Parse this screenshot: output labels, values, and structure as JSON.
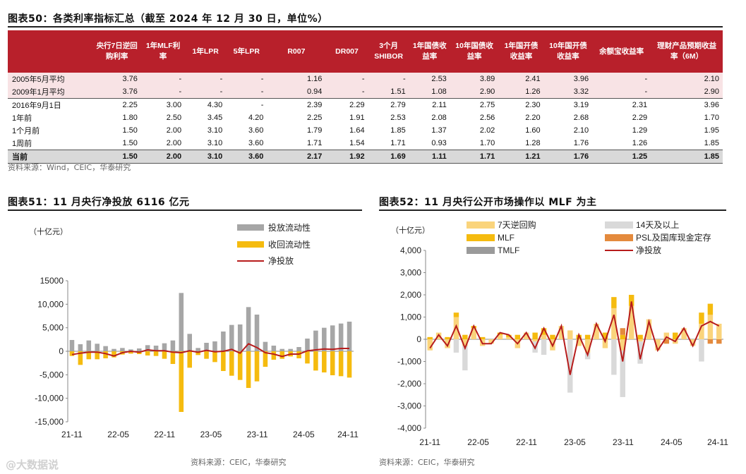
{
  "table_fig": {
    "title": "图表50：各类利率指标汇总（截至 2024 年 12 月 30 日，单位%）",
    "source": "资料来源：Wind，CEIC，华泰研究",
    "columns": [
      "",
      "央行7日逆回购利率",
      "1年MLF利率",
      "1年LPR",
      "5年LPR",
      "R007",
      "DR007",
      "3个月SHIBOR",
      "1年国债收益率",
      "10年国债收益率",
      "1年国开债收益率",
      "10年国开债收益率",
      "余额宝收益率",
      "理财产品预期收益率（6M）"
    ],
    "rows": [
      {
        "label": "2005年5月平均",
        "vals": [
          "3.76",
          "-",
          "-",
          "-",
          "1.16",
          "-",
          "-",
          "2.53",
          "3.89",
          "2.41",
          "3.96",
          "-",
          "2.10"
        ]
      },
      {
        "label": "2009年1月平均",
        "vals": [
          "3.76",
          "-",
          "-",
          "-",
          "0.94",
          "-",
          "1.51",
          "1.08",
          "2.90",
          "1.26",
          "3.32",
          "-",
          "2.90"
        ]
      },
      {
        "label": "2016年9月1日",
        "vals": [
          "2.25",
          "3.00",
          "4.30",
          "-",
          "2.39",
          "2.29",
          "2.79",
          "2.11",
          "2.75",
          "2.30",
          "3.19",
          "2.31",
          "3.96"
        ]
      },
      {
        "label": "1年前",
        "vals": [
          "1.80",
          "2.50",
          "3.45",
          "4.20",
          "2.25",
          "1.91",
          "2.53",
          "2.08",
          "2.56",
          "2.20",
          "2.68",
          "2.29",
          "1.70"
        ]
      },
      {
        "label": "1个月前",
        "vals": [
          "1.50",
          "2.00",
          "3.10",
          "3.60",
          "1.79",
          "1.64",
          "1.85",
          "1.37",
          "2.02",
          "1.60",
          "2.10",
          "1.29",
          "1.95"
        ]
      },
      {
        "label": "1周前",
        "vals": [
          "1.50",
          "2.00",
          "3.10",
          "3.60",
          "1.71",
          "1.54",
          "1.71",
          "0.93",
          "1.70",
          "1.28",
          "1.76",
          "1.26",
          "1.85"
        ]
      },
      {
        "label": "当前",
        "vals": [
          "1.50",
          "2.00",
          "3.10",
          "3.60",
          "2.17",
          "1.92",
          "1.69",
          "1.11",
          "1.71",
          "1.21",
          "1.76",
          "1.25",
          "1.85"
        ]
      }
    ]
  },
  "chart_data": [
    {
      "type": "bar",
      "title": "图表51：11 月央行净投放 6116 亿元",
      "unit_label": "（十亿元）",
      "source": "资料来源：CEIC，华泰研究",
      "ylim": [
        -15000,
        15000
      ],
      "yticks": [
        "15000",
        "10,000",
        "5,000",
        "0",
        "-5,000",
        "-10,000",
        "-15,000"
      ],
      "ytick_values": [
        15000,
        10000,
        5000,
        0,
        -5000,
        -10000,
        -15000
      ],
      "xtick_labels": [
        "21-11",
        "22-05",
        "22-11",
        "23-05",
        "23-11",
        "24-05",
        "24-11"
      ],
      "legend": [
        "投放流动性",
        "收回流动性",
        "净投放"
      ],
      "colors": {
        "inject": "#a6a6a6",
        "withdraw": "#f5bb0f",
        "net": "#b71c1c"
      },
      "series": [
        {
          "name": "投放流动性",
          "values": [
            2400,
            1500,
            2300,
            1600,
            1100,
            500,
            700,
            400,
            600,
            1300,
            1200,
            1700,
            2300,
            12400,
            3700,
            700,
            1800,
            2100,
            4200,
            5600,
            5700,
            9400,
            7800,
            2000,
            1200,
            500,
            500,
            900,
            2700,
            4400,
            5000,
            5500,
            5900,
            6300
          ]
        },
        {
          "name": "收回流动性",
          "values": [
            -1000,
            -2900,
            -1700,
            -1700,
            -1500,
            -1300,
            -700,
            -500,
            -600,
            -900,
            -1000,
            -1600,
            -2700,
            -12900,
            -3500,
            -800,
            -1600,
            -2300,
            -4200,
            -5200,
            -6100,
            -7800,
            -6400,
            -3300,
            -1800,
            -1600,
            -1100,
            -1500,
            -2600,
            -4100,
            -4500,
            -5100,
            -5300,
            -5600
          ]
        },
        {
          "name": "净投放",
          "values": [
            -700,
            -400,
            -200,
            -200,
            -500,
            -1000,
            -300,
            0,
            -200,
            300,
            100,
            100,
            -200,
            -300,
            100,
            -200,
            200,
            -100,
            0,
            400,
            -400,
            1600,
            800,
            -300,
            -600,
            -1100,
            -600,
            -600,
            100,
            300,
            500,
            400,
            600,
            600
          ]
        }
      ]
    },
    {
      "type": "bar",
      "title": "图表52：11 月央行公开市场操作以 MLF 为主",
      "unit_label": "（十亿元）",
      "source": "资料来源：CEIC，华泰研究",
      "ylim": [
        -4000,
        4000
      ],
      "yticks": [
        "4,000",
        "3,000",
        "2,000",
        "1,000",
        "0",
        "-1,000",
        "-2,000",
        "-3,000",
        "-4,000"
      ],
      "ytick_values": [
        4000,
        3000,
        2000,
        1000,
        0,
        -1000,
        -2000,
        -3000,
        -4000
      ],
      "xtick_labels": [
        "21-11",
        "22-05",
        "22-11",
        "23-05",
        "23-11",
        "24-05",
        "24-11"
      ],
      "legend": [
        "7天逆回购",
        "14天及以上",
        "MLF",
        "PSL及国库现金定存",
        "TMLF",
        "净投放"
      ],
      "colors": {
        "rr7": "#fad47c",
        "rr14": "#d9d9d9",
        "mlf": "#f5bb0f",
        "psl": "#e48a3d",
        "tmlf": "#9a9a9a",
        "net": "#b71c1c"
      },
      "series": [
        {
          "name": "7天逆回购",
          "values": [
            -500,
            300,
            -400,
            1000,
            -300,
            500,
            -300,
            -200,
            200,
            100,
            -400,
            300,
            -100,
            200,
            -500,
            600,
            400,
            -300,
            -600,
            700,
            -400,
            1400,
            -500,
            1500,
            -100,
            900,
            -500,
            300,
            -200,
            500,
            -300,
            700,
            1100,
            700
          ]
        },
        {
          "name": "14天及以上",
          "values": [
            0,
            0,
            0,
            -600,
            -1100,
            0,
            0,
            0,
            0,
            0,
            0,
            0,
            -500,
            -700,
            0,
            0,
            -2400,
            0,
            -300,
            0,
            0,
            -1600,
            -2100,
            0,
            -1000,
            0,
            0,
            0,
            0,
            0,
            0,
            -1000,
            0,
            0
          ]
        },
        {
          "name": "MLF",
          "values": [
            100,
            0,
            100,
            200,
            200,
            100,
            100,
            0,
            100,
            100,
            200,
            0,
            300,
            300,
            200,
            0,
            0,
            200,
            200,
            0,
            300,
            500,
            200,
            500,
            200,
            0,
            0,
            0,
            300,
            0,
            0,
            500,
            500,
            0
          ]
        },
        {
          "name": "PSL及国库现金定存",
          "values": [
            0,
            0,
            0,
            0,
            0,
            0,
            0,
            0,
            0,
            0,
            0,
            0,
            0,
            0,
            0,
            0,
            0,
            0,
            0,
            0,
            0,
            0,
            300,
            0,
            0,
            0,
            0,
            -200,
            0,
            0,
            0,
            0,
            -200,
            -200
          ]
        },
        {
          "name": "TMLF",
          "values": [
            0,
            0,
            0,
            0,
            0,
            0,
            0,
            0,
            0,
            0,
            0,
            0,
            0,
            0,
            0,
            0,
            0,
            0,
            0,
            0,
            0,
            0,
            0,
            0,
            0,
            0,
            0,
            0,
            0,
            0,
            0,
            0,
            0,
            0
          ]
        },
        {
          "name": "净投放",
          "values": [
            -400,
            200,
            -300,
            600,
            -400,
            600,
            -200,
            -200,
            300,
            200,
            -200,
            300,
            -400,
            500,
            -300,
            600,
            -1600,
            200,
            -700,
            700,
            -100,
            1100,
            -1000,
            1700,
            -900,
            800,
            -500,
            100,
            -100,
            500,
            -300,
            600,
            800,
            600
          ]
        }
      ]
    }
  ],
  "watermark": "@大数据说"
}
